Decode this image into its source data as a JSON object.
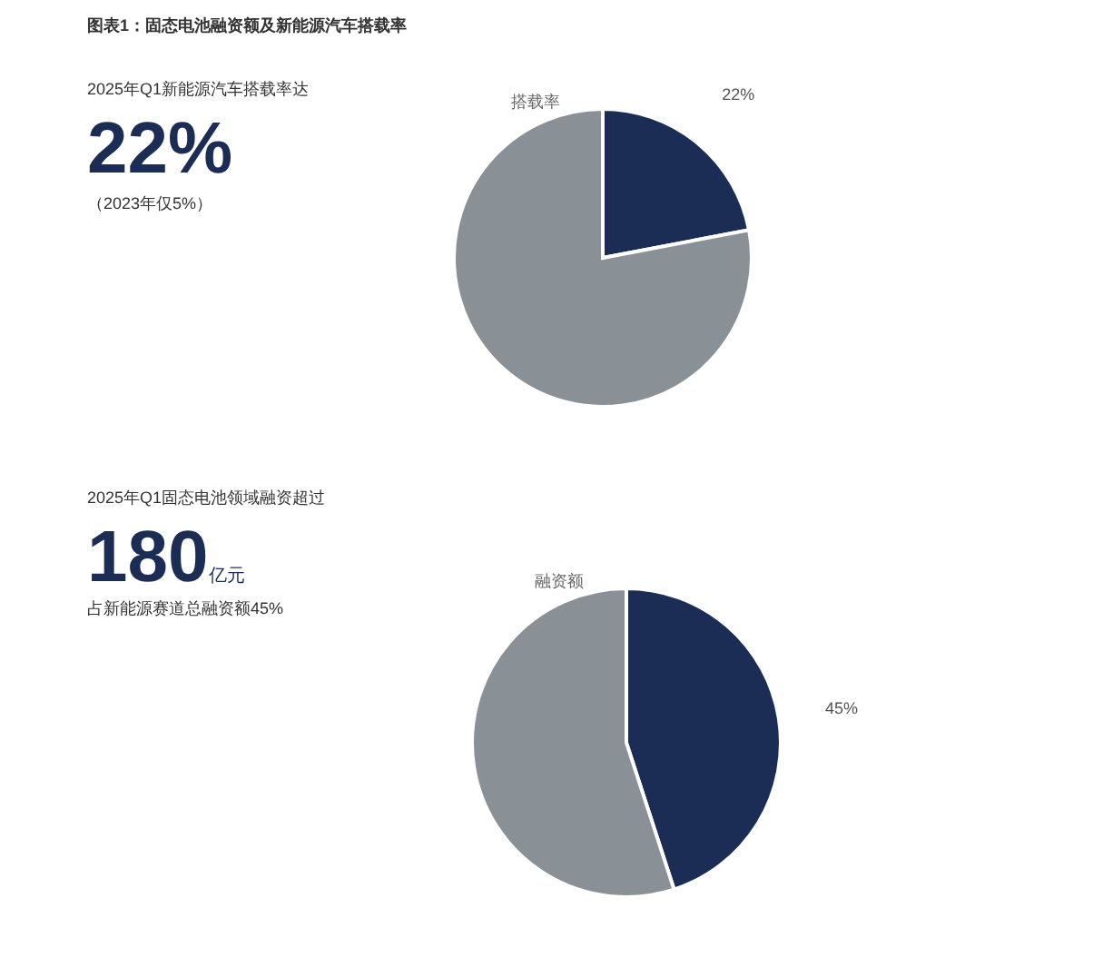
{
  "chart_data": [
    {
      "type": "other",
      "title": "图表1：固态电池融资额及新能源汽车搭载率",
      "subtitle": "2025年Q1新能源汽车搭载率达",
      "annotations": [
        "22%",
        "（2023年仅5%）"
      ]
    },
    {
      "type": "pie",
      "title": "搭载率",
      "categories": [
        null,
        null
      ],
      "values": [
        22,
        78
      ],
      "colors": [
        "#1b2d55",
        "#8a9196"
      ],
      "value_labels": [
        "22%",
        null
      ]
    },
    {
      "type": "other",
      "subtitle": "2025年Q1固态电池领域融资超过",
      "annotations": [
        "180",
        "亿元",
        "占新能源赛道总融资额45%"
      ]
    },
    {
      "type": "pie",
      "title": "融资额",
      "categories": [
        null,
        null
      ],
      "values": [
        45,
        55
      ],
      "colors": [
        "#1b2d55",
        "#8a9196"
      ],
      "value_labels": [
        "45%",
        null
      ]
    }
  ]
}
